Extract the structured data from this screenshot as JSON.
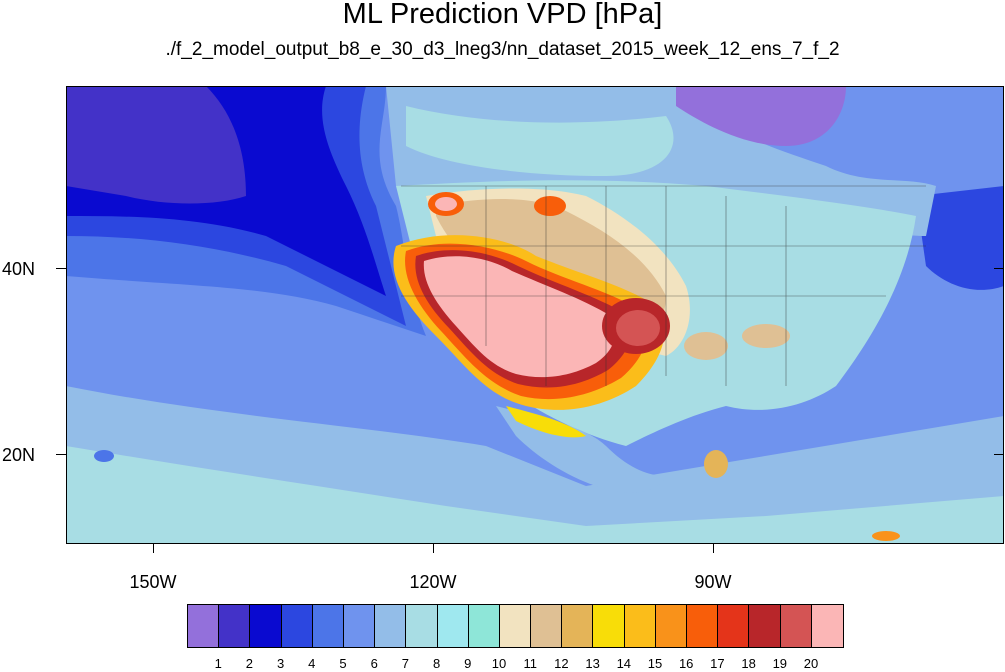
{
  "title": "ML Prediction VPD [hPa]",
  "subtitle": "./f_2_model_output_b8_e_30_d3_lneg3/nn_dataset_2015_week_12_ens_7_f_2",
  "map": {
    "projection": "cylindrical equidistant",
    "lon_range": [
      -160,
      -60
    ],
    "lat_range": [
      11,
      60
    ],
    "lon_labels": [
      "150W",
      "120W",
      "90W"
    ],
    "lat_labels": [
      "40N",
      "20N"
    ]
  },
  "colorbar": {
    "levels": [
      "1",
      "2",
      "3",
      "4",
      "5",
      "6",
      "7",
      "8",
      "9",
      "10",
      "11",
      "12",
      "13",
      "14",
      "15",
      "16",
      "17",
      "18",
      "19",
      "20"
    ],
    "colors": [
      "#9370db",
      "#4332c8",
      "#0a0ad0",
      "#2c47e0",
      "#4c75e8",
      "#6f93ee",
      "#93bde8",
      "#a8dde4",
      "#9fe8ef",
      "#8ee6d8",
      "#f2e3c0",
      "#dfc094",
      "#e4b458",
      "#f8dd08",
      "#fbbd1a",
      "#f9921a",
      "#f85e0a",
      "#e4341a",
      "#b8262a",
      "#d45454",
      "#fbb6b6"
    ]
  }
}
